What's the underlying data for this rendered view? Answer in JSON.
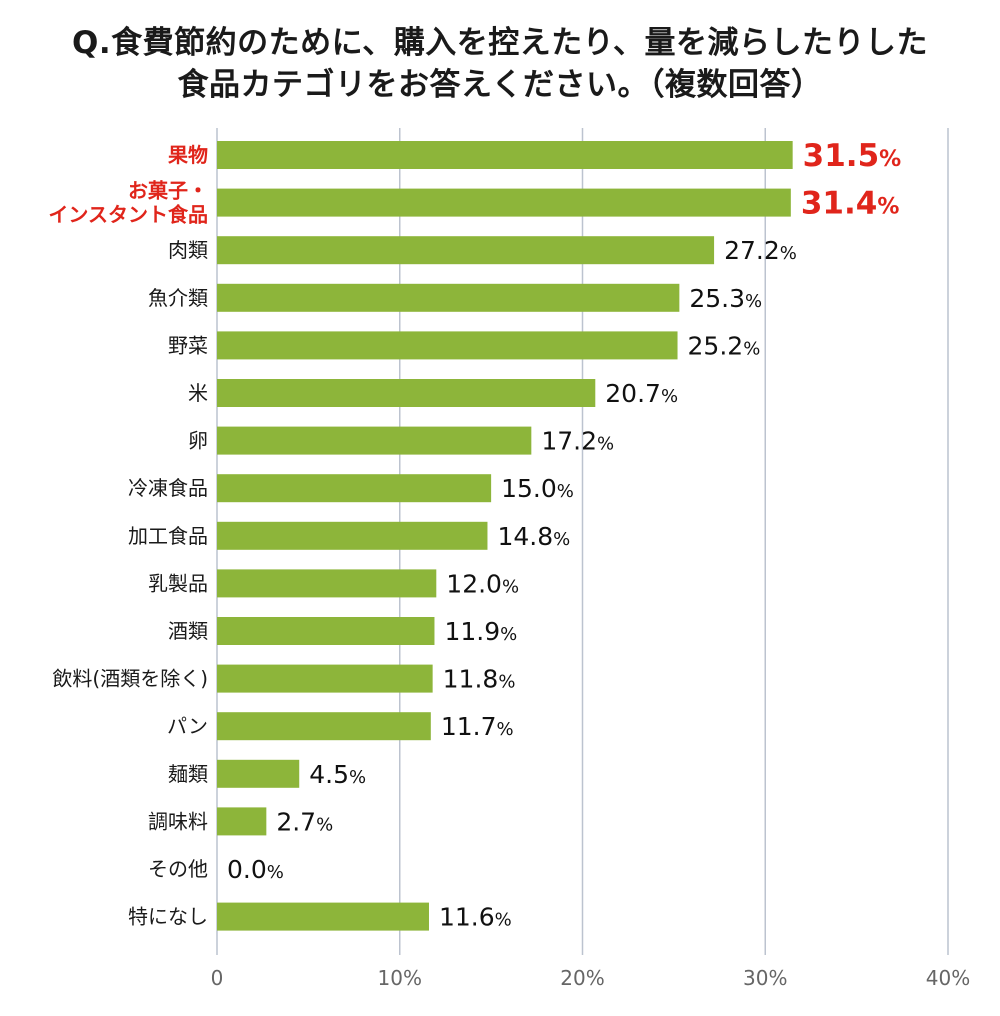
{
  "chart_data": {
    "type": "bar",
    "orientation": "horizontal",
    "title_lines": [
      "Q.食費節約のために、購入を控えたり、量を減らしたりした",
      "食品カテゴリをお答えください。（複数回答）"
    ],
    "categories": [
      [
        "果物"
      ],
      [
        "お菓子・",
        "インスタント食品"
      ],
      [
        "肉類"
      ],
      [
        "魚介類"
      ],
      [
        "野菜"
      ],
      [
        "米"
      ],
      [
        "卵"
      ],
      [
        "冷凍食品"
      ],
      [
        "加工食品"
      ],
      [
        "乳製品"
      ],
      [
        "酒類"
      ],
      [
        "飲料(酒類を除く)"
      ],
      [
        "パン"
      ],
      [
        "麺類"
      ],
      [
        "調味料"
      ],
      [
        "その他"
      ],
      [
        "特になし"
      ]
    ],
    "values": [
      31.5,
      31.4,
      27.2,
      25.3,
      25.2,
      20.7,
      17.2,
      15.0,
      14.8,
      12.0,
      11.9,
      11.8,
      11.7,
      4.5,
      2.7,
      0.0,
      11.6
    ],
    "value_labels": [
      "31.5",
      "31.4",
      "27.2",
      "25.3",
      "25.2",
      "20.7",
      "17.2",
      "15.0",
      "14.8",
      "12.0",
      "11.9",
      "11.8",
      "11.7",
      "4.5",
      "2.7",
      "0.0",
      "11.6"
    ],
    "value_unit": "%",
    "highlighted_indices": [
      0,
      1
    ],
    "xlim": [
      0,
      40
    ],
    "x_ticks": [
      0,
      10,
      20,
      30,
      40
    ],
    "x_tick_labels": [
      "0",
      "10%",
      "20%",
      "30%",
      "40%"
    ],
    "grid": true,
    "legend": "none",
    "colors": {
      "bar": "#8db53a",
      "highlight_text": "#e0251b",
      "grid": "#bcc3cf",
      "tick_text": "#666666",
      "text": "#1a1a1a"
    }
  }
}
